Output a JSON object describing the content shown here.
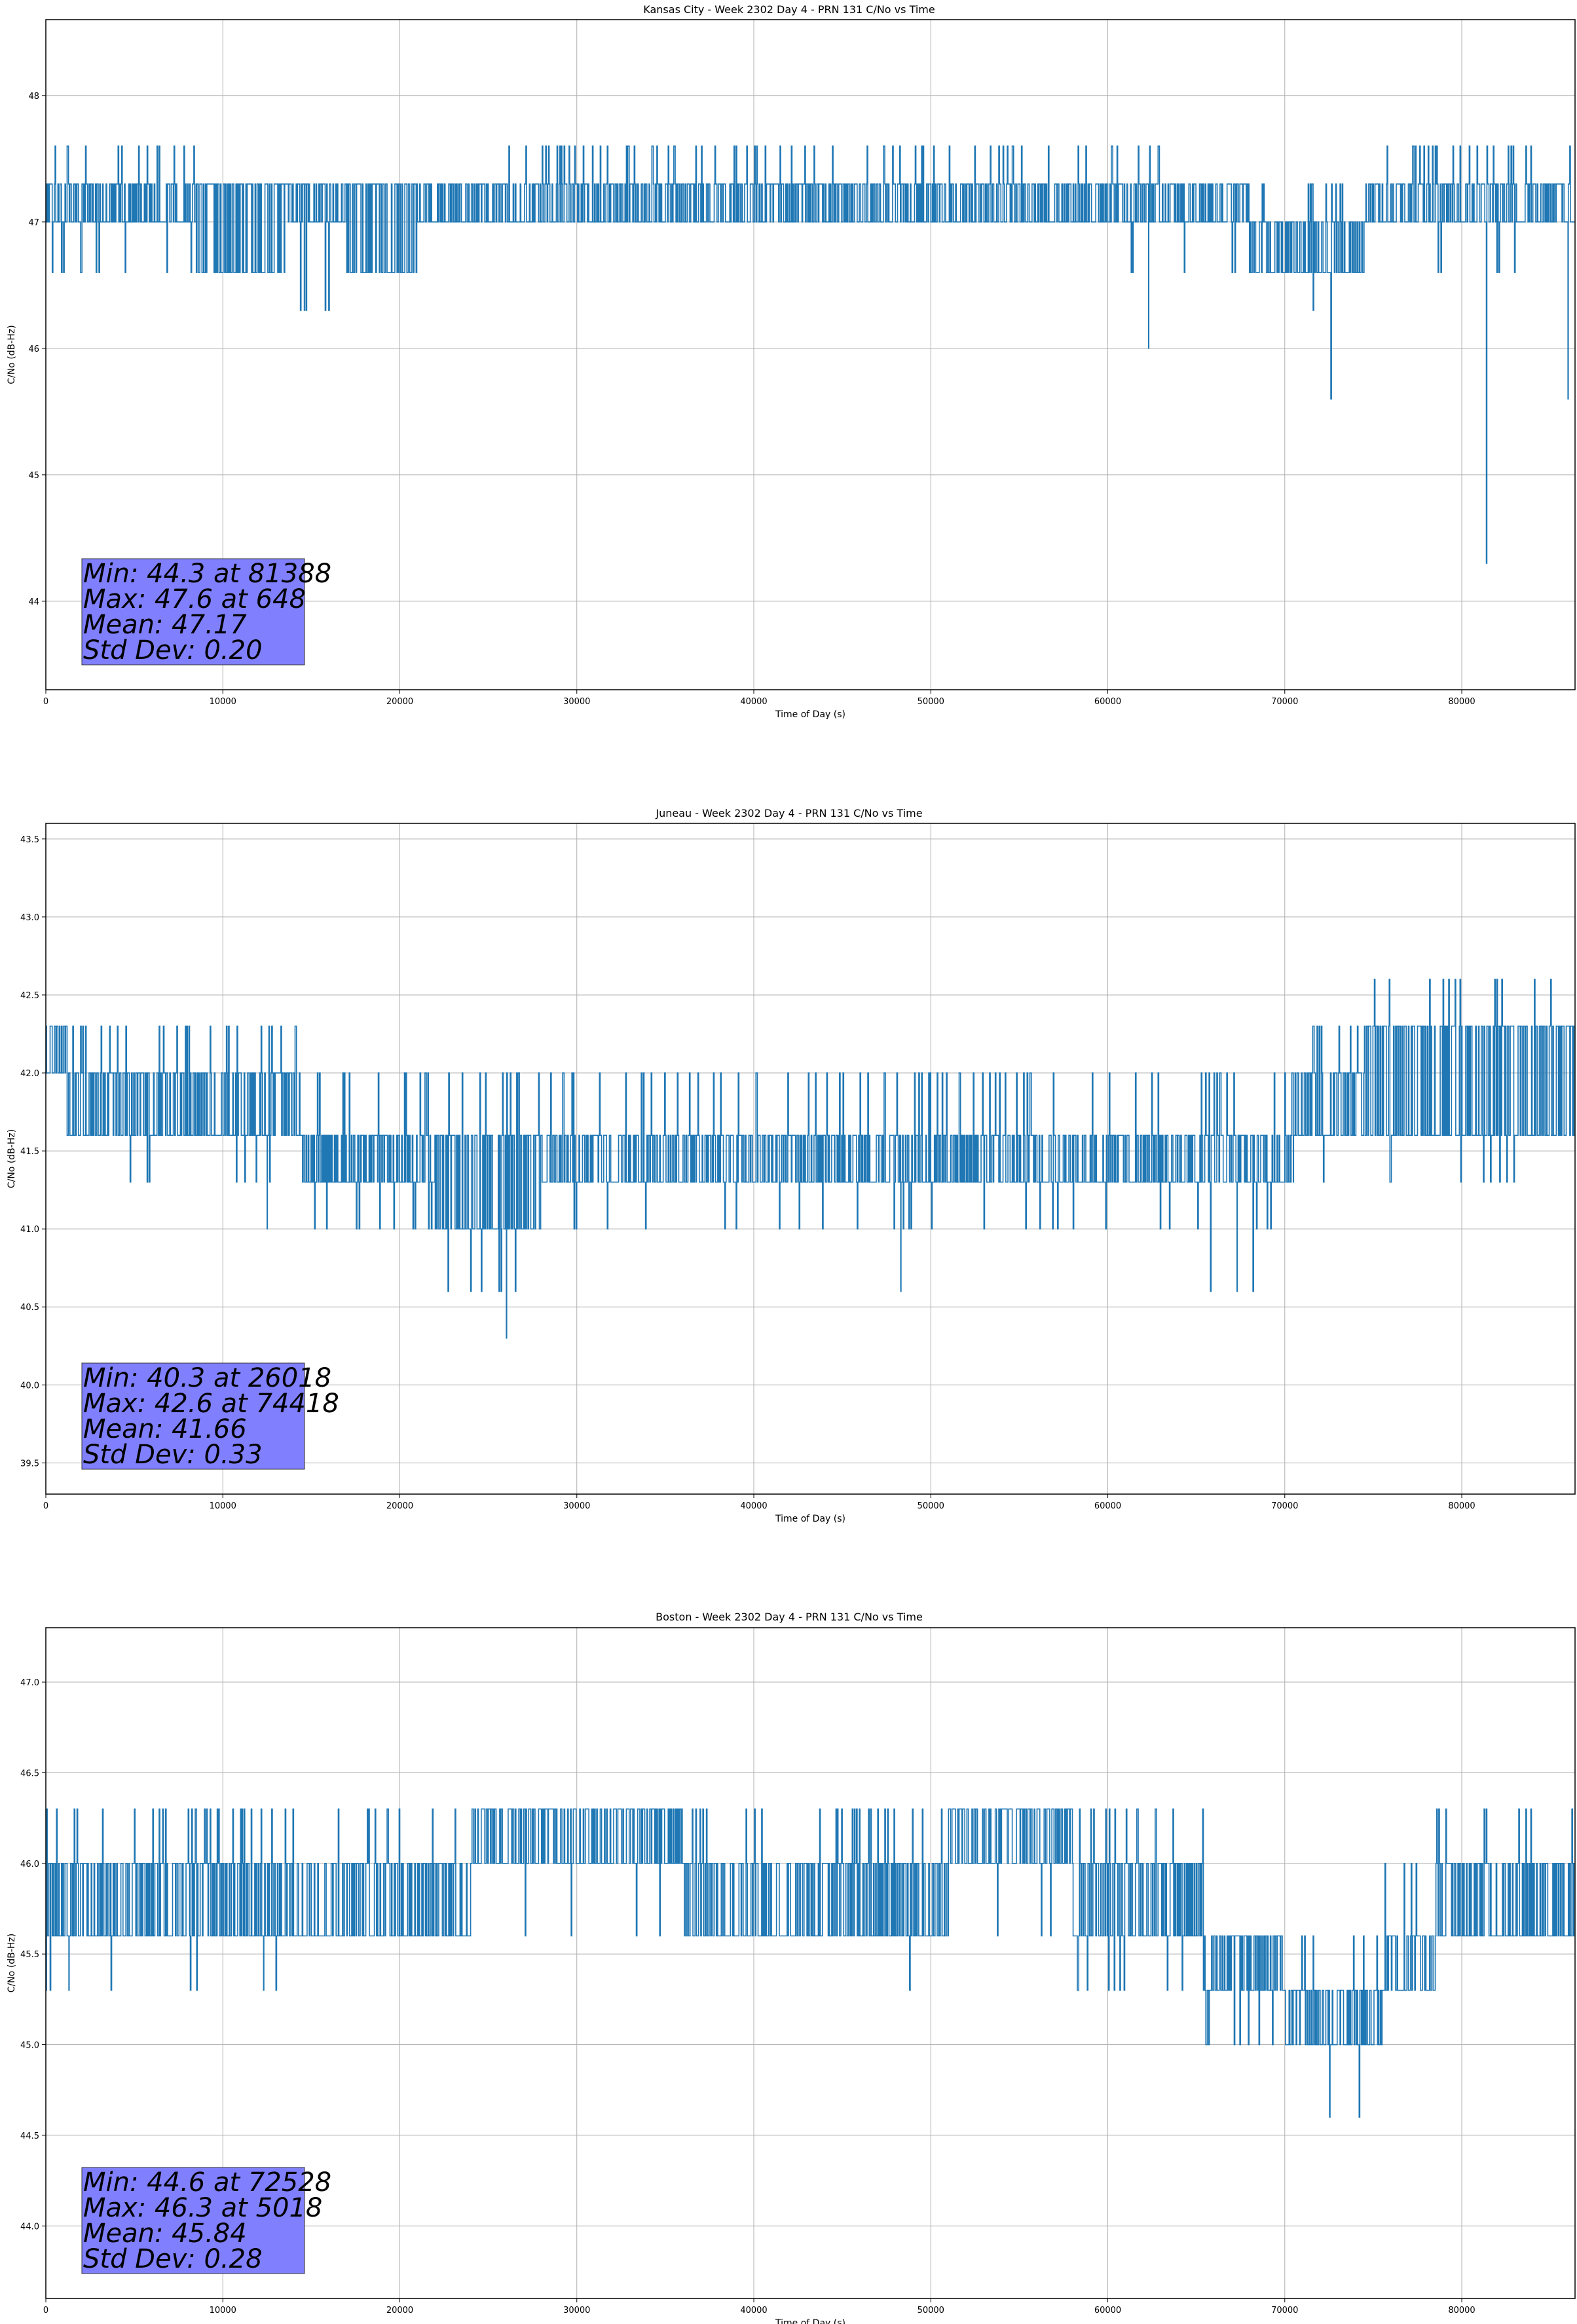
{
  "chart_data": [
    {
      "type": "line",
      "title": "Kansas City - Week 2302 Day 4 - PRN 131 C/No vs Time",
      "xlabel": "Time of Day (s)",
      "ylabel": "C/No (dB-Hz)",
      "xlim": [
        0,
        86400
      ],
      "ylim": [
        43.3,
        48.6
      ],
      "x_ticks": [
        0,
        10000,
        20000,
        30000,
        40000,
        50000,
        60000,
        70000,
        80000
      ],
      "y_ticks": [
        44,
        45,
        46,
        47,
        48
      ],
      "y_tick_decimals": 0,
      "grid": true,
      "line_color": "#1f77b4",
      "levels": [
        46.6,
        47.0,
        47.3,
        47.6
      ],
      "segments": [
        {
          "x0": 0,
          "x1": 8500,
          "base": 47.0,
          "upper": 47.3,
          "spike": 47.6,
          "lower": 46.6
        },
        {
          "x0": 8500,
          "x1": 13500,
          "base": 46.6,
          "upper": 47.3,
          "spike": 47.3,
          "lower": 46.6
        },
        {
          "x0": 13500,
          "x1": 17000,
          "base": 47.0,
          "upper": 47.3,
          "spike": 47.3,
          "lower": 46.3
        },
        {
          "x0": 17000,
          "x1": 21000,
          "base": 46.6,
          "upper": 47.3,
          "spike": 47.3,
          "lower": 46.6
        },
        {
          "x0": 21000,
          "x1": 26000,
          "base": 47.0,
          "upper": 47.3,
          "spike": 47.3,
          "lower": 47.0
        },
        {
          "x0": 26000,
          "x1": 57000,
          "base": 47.0,
          "upper": 47.3,
          "spike": 47.6,
          "lower": 47.0
        },
        {
          "x0": 57000,
          "x1": 64500,
          "base": 47.0,
          "upper": 47.3,
          "spike": 47.6,
          "lower": 46.6
        },
        {
          "x0": 64500,
          "x1": 68000,
          "base": 47.0,
          "upper": 47.3,
          "spike": 47.3,
          "lower": 46.6
        },
        {
          "x0": 68000,
          "x1": 74500,
          "base": 46.6,
          "upper": 47.0,
          "spike": 47.3,
          "lower": 46.6
        },
        {
          "x0": 74500,
          "x1": 86400,
          "base": 47.0,
          "upper": 47.3,
          "spike": 47.6,
          "lower": 46.6
        }
      ],
      "dips": [
        {
          "x": 8200,
          "y": 46.6
        },
        {
          "x": 14600,
          "y": 46.3
        },
        {
          "x": 62300,
          "y": 46.0
        },
        {
          "x": 71600,
          "y": 46.3
        },
        {
          "x": 72600,
          "y": 45.6
        },
        {
          "x": 81388,
          "y": 44.3
        },
        {
          "x": 86000,
          "y": 45.6
        }
      ],
      "stats": {
        "min": "Min: 44.3 at 81388",
        "max": "Max: 47.6 at 648",
        "mean": "Mean: 47.17",
        "std": "Std Dev: 0.20"
      }
    },
    {
      "type": "line",
      "title": "Juneau - Week 2302 Day 4 - PRN 131 C/No vs Time",
      "xlabel": "Time of Day (s)",
      "ylabel": "C/No (dB-Hz)",
      "xlim": [
        0,
        86400
      ],
      "ylim": [
        39.3,
        43.6
      ],
      "x_ticks": [
        0,
        10000,
        20000,
        30000,
        40000,
        50000,
        60000,
        70000,
        80000
      ],
      "y_ticks": [
        39.5,
        40.0,
        40.5,
        41.0,
        41.5,
        42.0,
        42.5,
        43.0,
        43.5
      ],
      "y_tick_decimals": 1,
      "grid": true,
      "line_color": "#1f77b4",
      "levels": [
        41.0,
        41.3,
        41.6,
        42.0,
        42.3,
        42.6
      ],
      "segments": [
        {
          "x0": 0,
          "x1": 1200,
          "base": 42.0,
          "upper": 42.3,
          "spike": 42.3,
          "lower": 41.6
        },
        {
          "x0": 1200,
          "x1": 14500,
          "base": 41.6,
          "upper": 42.0,
          "spike": 42.3,
          "lower": 41.3
        },
        {
          "x0": 14500,
          "x1": 22000,
          "base": 41.3,
          "upper": 41.6,
          "spike": 42.0,
          "lower": 41.0
        },
        {
          "x0": 22000,
          "x1": 28000,
          "base": 41.0,
          "upper": 41.6,
          "spike": 42.0,
          "lower": 40.6
        },
        {
          "x0": 28000,
          "x1": 40000,
          "base": 41.3,
          "upper": 41.6,
          "spike": 42.0,
          "lower": 41.0
        },
        {
          "x0": 40000,
          "x1": 50000,
          "base": 41.3,
          "upper": 41.6,
          "spike": 42.0,
          "lower": 41.0
        },
        {
          "x0": 50000,
          "x1": 62000,
          "base": 41.3,
          "upper": 41.6,
          "spike": 42.0,
          "lower": 41.0
        },
        {
          "x0": 62000,
          "x1": 70500,
          "base": 41.3,
          "upper": 41.6,
          "spike": 42.0,
          "lower": 41.0
        },
        {
          "x0": 70500,
          "x1": 74500,
          "base": 41.6,
          "upper": 42.0,
          "spike": 42.3,
          "lower": 41.3
        },
        {
          "x0": 74500,
          "x1": 86400,
          "base": 41.6,
          "upper": 42.3,
          "spike": 42.6,
          "lower": 41.3
        }
      ],
      "dips": [
        {
          "x": 12500,
          "y": 41.0
        },
        {
          "x": 24000,
          "y": 40.6
        },
        {
          "x": 24600,
          "y": 40.6
        },
        {
          "x": 25600,
          "y": 40.6
        },
        {
          "x": 26018,
          "y": 40.3
        },
        {
          "x": 48300,
          "y": 40.6
        },
        {
          "x": 65800,
          "y": 40.6
        },
        {
          "x": 67300,
          "y": 40.6
        },
        {
          "x": 68200,
          "y": 40.6
        }
      ],
      "stats": {
        "min": "Min: 40.3 at 26018",
        "max": "Max: 42.6 at 74418",
        "mean": "Mean: 41.66",
        "std": "Std Dev: 0.33"
      }
    },
    {
      "type": "line",
      "title": "Boston - Week 2302 Day 4 - PRN 131 C/No vs Time",
      "xlabel": "Time of Day (s)",
      "ylabel": "C/No (dB-Hz)",
      "xlim": [
        0,
        86400
      ],
      "ylim": [
        43.6,
        47.3
      ],
      "x_ticks": [
        0,
        10000,
        20000,
        30000,
        40000,
        50000,
        60000,
        70000,
        80000
      ],
      "y_ticks": [
        44.0,
        44.5,
        45.0,
        45.5,
        46.0,
        46.5,
        47.0
      ],
      "y_tick_decimals": 1,
      "grid": true,
      "line_color": "#1f77b4",
      "levels": [
        45.0,
        45.3,
        45.6,
        46.0,
        46.3
      ],
      "segments": [
        {
          "x0": 0,
          "x1": 15000,
          "base": 45.6,
          "upper": 46.0,
          "spike": 46.3,
          "lower": 45.3
        },
        {
          "x0": 15000,
          "x1": 24000,
          "base": 45.6,
          "upper": 46.0,
          "spike": 46.3,
          "lower": 45.6
        },
        {
          "x0": 24000,
          "x1": 36000,
          "base": 46.0,
          "upper": 46.3,
          "spike": 46.3,
          "lower": 45.6
        },
        {
          "x0": 36000,
          "x1": 51000,
          "base": 45.6,
          "upper": 46.0,
          "spike": 46.3,
          "lower": 45.6
        },
        {
          "x0": 51000,
          "x1": 58000,
          "base": 46.0,
          "upper": 46.3,
          "spike": 46.3,
          "lower": 45.6
        },
        {
          "x0": 58000,
          "x1": 65500,
          "base": 45.6,
          "upper": 46.0,
          "spike": 46.3,
          "lower": 45.3
        },
        {
          "x0": 65500,
          "x1": 70000,
          "base": 45.3,
          "upper": 45.6,
          "spike": 45.6,
          "lower": 45.0
        },
        {
          "x0": 70000,
          "x1": 75500,
          "base": 45.0,
          "upper": 45.3,
          "spike": 45.6,
          "lower": 45.0
        },
        {
          "x0": 75500,
          "x1": 78500,
          "base": 45.3,
          "upper": 45.6,
          "spike": 46.0,
          "lower": 45.3
        },
        {
          "x0": 78500,
          "x1": 86400,
          "base": 45.6,
          "upper": 46.0,
          "spike": 46.3,
          "lower": 45.6
        }
      ],
      "dips": [
        {
          "x": 1300,
          "y": 45.3
        },
        {
          "x": 12300,
          "y": 45.3
        },
        {
          "x": 48800,
          "y": 45.3
        },
        {
          "x": 72528,
          "y": 44.6
        },
        {
          "x": 74200,
          "y": 44.6
        }
      ],
      "stats": {
        "min": "Min: 44.6 at 72528",
        "max": "Max: 46.3 at 5018",
        "mean": "Mean: 45.84",
        "std": "Std Dev: 0.28"
      }
    }
  ]
}
